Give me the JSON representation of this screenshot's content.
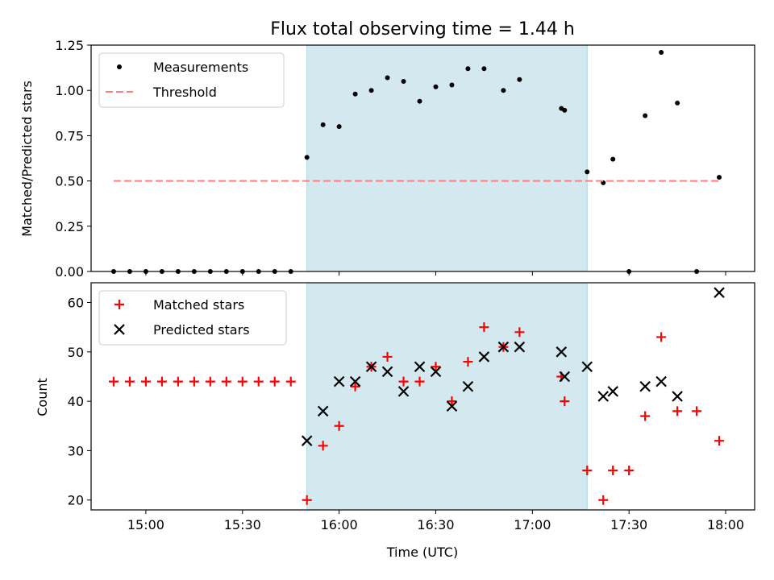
{
  "chart_data": {
    "title": "Flux total observing time = 1.44 h",
    "xlabel": "Time (UTC)",
    "xlim": [
      "14:43",
      "18:09"
    ],
    "x_ticks": [
      "15:00",
      "15:30",
      "16:00",
      "16:30",
      "17:00",
      "17:30",
      "18:00"
    ],
    "shaded_region": {
      "start": "15:50",
      "end": "17:17",
      "color": "#d3e9ef"
    },
    "panels": [
      {
        "type": "scatter",
        "ylabel": "Matched/Predicted stars",
        "ylim": [
          0,
          1.25
        ],
        "y_ticks": [
          "0.00",
          "0.25",
          "0.50",
          "0.75",
          "1.00",
          "1.25"
        ],
        "legend_position": "upper-left",
        "series": [
          {
            "name": "Measurements",
            "marker": "dot",
            "color": "#000000",
            "points": [
              [
                "14:50",
                0
              ],
              [
                "14:55",
                0
              ],
              [
                "15:00",
                0
              ],
              [
                "15:05",
                0
              ],
              [
                "15:10",
                0
              ],
              [
                "15:15",
                0
              ],
              [
                "15:20",
                0
              ],
              [
                "15:25",
                0
              ],
              [
                "15:30",
                0
              ],
              [
                "15:35",
                0
              ],
              [
                "15:40",
                0
              ],
              [
                "15:45",
                0
              ],
              [
                "15:50",
                0.63
              ],
              [
                "15:55",
                0.81
              ],
              [
                "16:00",
                0.8
              ],
              [
                "16:05",
                0.98
              ],
              [
                "16:10",
                1.0
              ],
              [
                "16:15",
                1.07
              ],
              [
                "16:20",
                1.05
              ],
              [
                "16:25",
                0.94
              ],
              [
                "16:30",
                1.02
              ],
              [
                "16:35",
                1.03
              ],
              [
                "16:40",
                1.12
              ],
              [
                "16:45",
                1.12
              ],
              [
                "16:51",
                1.0
              ],
              [
                "16:56",
                1.06
              ],
              [
                "17:09",
                0.9
              ],
              [
                "17:10",
                0.89
              ],
              [
                "17:17",
                0.55
              ],
              [
                "17:22",
                0.49
              ],
              [
                "17:25",
                0.62
              ],
              [
                "17:30",
                0.0
              ],
              [
                "17:35",
                0.86
              ],
              [
                "17:40",
                1.21
              ],
              [
                "17:45",
                0.93
              ],
              [
                "17:51",
                0.0
              ],
              [
                "17:58",
                0.52
              ]
            ]
          },
          {
            "name": "Threshold",
            "marker": "dashed-line",
            "color": "#ff7f7f",
            "points": [
              [
                "14:50",
                0.5
              ],
              [
                "17:58",
                0.5
              ]
            ]
          }
        ]
      },
      {
        "type": "scatter",
        "ylabel": "Count",
        "ylim": [
          18,
          64
        ],
        "y_ticks": [
          "20",
          "30",
          "40",
          "50",
          "60"
        ],
        "legend_position": "upper-left",
        "series": [
          {
            "name": "Matched stars",
            "marker": "plus",
            "color": "#ff0000",
            "points": [
              [
                "14:50",
                44
              ],
              [
                "14:55",
                44
              ],
              [
                "15:00",
                44
              ],
              [
                "15:05",
                44
              ],
              [
                "15:10",
                44
              ],
              [
                "15:15",
                44
              ],
              [
                "15:20",
                44
              ],
              [
                "15:25",
                44
              ],
              [
                "15:30",
                44
              ],
              [
                "15:35",
                44
              ],
              [
                "15:40",
                44
              ],
              [
                "15:45",
                44
              ],
              [
                "15:50",
                20
              ],
              [
                "15:55",
                31
              ],
              [
                "16:00",
                35
              ],
              [
                "16:05",
                43
              ],
              [
                "16:10",
                47
              ],
              [
                "16:15",
                49
              ],
              [
                "16:20",
                44
              ],
              [
                "16:25",
                44
              ],
              [
                "16:30",
                47
              ],
              [
                "16:35",
                40
              ],
              [
                "16:40",
                48
              ],
              [
                "16:45",
                55
              ],
              [
                "16:51",
                51
              ],
              [
                "16:56",
                54
              ],
              [
                "17:09",
                45
              ],
              [
                "17:10",
                40
              ],
              [
                "17:17",
                26
              ],
              [
                "17:22",
                20
              ],
              [
                "17:25",
                26
              ],
              [
                "17:30",
                26
              ],
              [
                "17:35",
                37
              ],
              [
                "17:40",
                53
              ],
              [
                "17:45",
                38
              ],
              [
                "17:51",
                38
              ],
              [
                "17:58",
                32
              ]
            ]
          },
          {
            "name": "Predicted stars",
            "marker": "x",
            "color": "#000000",
            "points": [
              [
                "15:50",
                32
              ],
              [
                "15:55",
                38
              ],
              [
                "16:00",
                44
              ],
              [
                "16:05",
                44
              ],
              [
                "16:10",
                47
              ],
              [
                "16:15",
                46
              ],
              [
                "16:20",
                42
              ],
              [
                "16:25",
                47
              ],
              [
                "16:30",
                46
              ],
              [
                "16:35",
                39
              ],
              [
                "16:40",
                43
              ],
              [
                "16:45",
                49
              ],
              [
                "16:51",
                51
              ],
              [
                "16:56",
                51
              ],
              [
                "17:09",
                50
              ],
              [
                "17:10",
                45
              ],
              [
                "17:17",
                47
              ],
              [
                "17:22",
                41
              ],
              [
                "17:25",
                42
              ],
              [
                "17:35",
                43
              ],
              [
                "17:40",
                44
              ],
              [
                "17:45",
                41
              ],
              [
                "17:58",
                62
              ]
            ]
          }
        ]
      }
    ]
  }
}
